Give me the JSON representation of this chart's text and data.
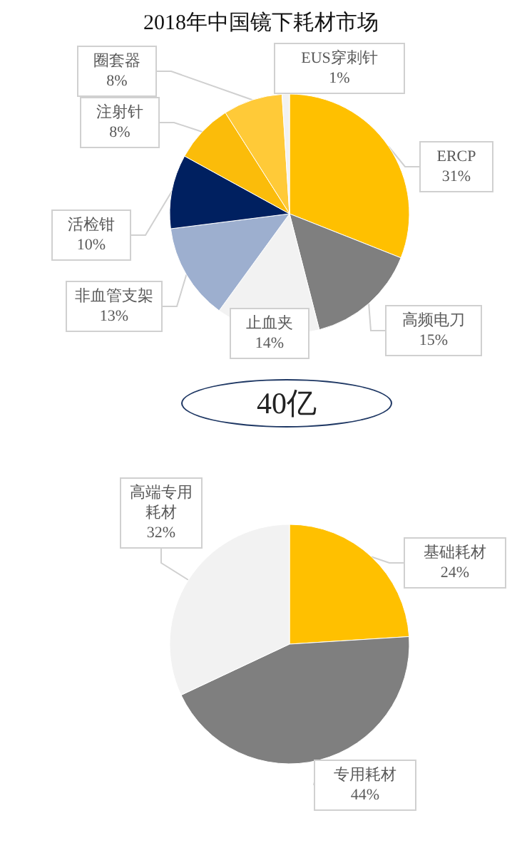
{
  "chart_data": [
    {
      "type": "pie",
      "title": "2018年中国镜下耗材市场",
      "categories": [
        "ERCP",
        "高频电刀",
        "止血夹",
        "非血管支架",
        "活检钳",
        "注射针",
        "圈套器",
        "EUS穿刺针"
      ],
      "values": [
        31,
        15,
        14,
        13,
        10,
        8,
        8,
        1
      ],
      "colors": [
        "#ffc000",
        "#7f7f7f",
        "#f2f2f2",
        "#9dafcf",
        "#002060",
        "#fbbc0a",
        "#ffca38",
        "#f2f2f2"
      ],
      "value_labels": [
        "31%",
        "15%",
        "14%",
        "13%",
        "10%",
        "8%",
        "8%",
        "1%"
      ],
      "annotations": [
        "40亿"
      ]
    },
    {
      "type": "pie",
      "categories": [
        "基础耗材",
        "专用耗材",
        "高端专用耗材"
      ],
      "values": [
        24,
        44,
        32
      ],
      "colors": [
        "#ffc000",
        "#7f7f7f",
        "#f2f2f2"
      ],
      "value_labels": [
        "24%",
        "44%",
        "32%"
      ]
    }
  ]
}
